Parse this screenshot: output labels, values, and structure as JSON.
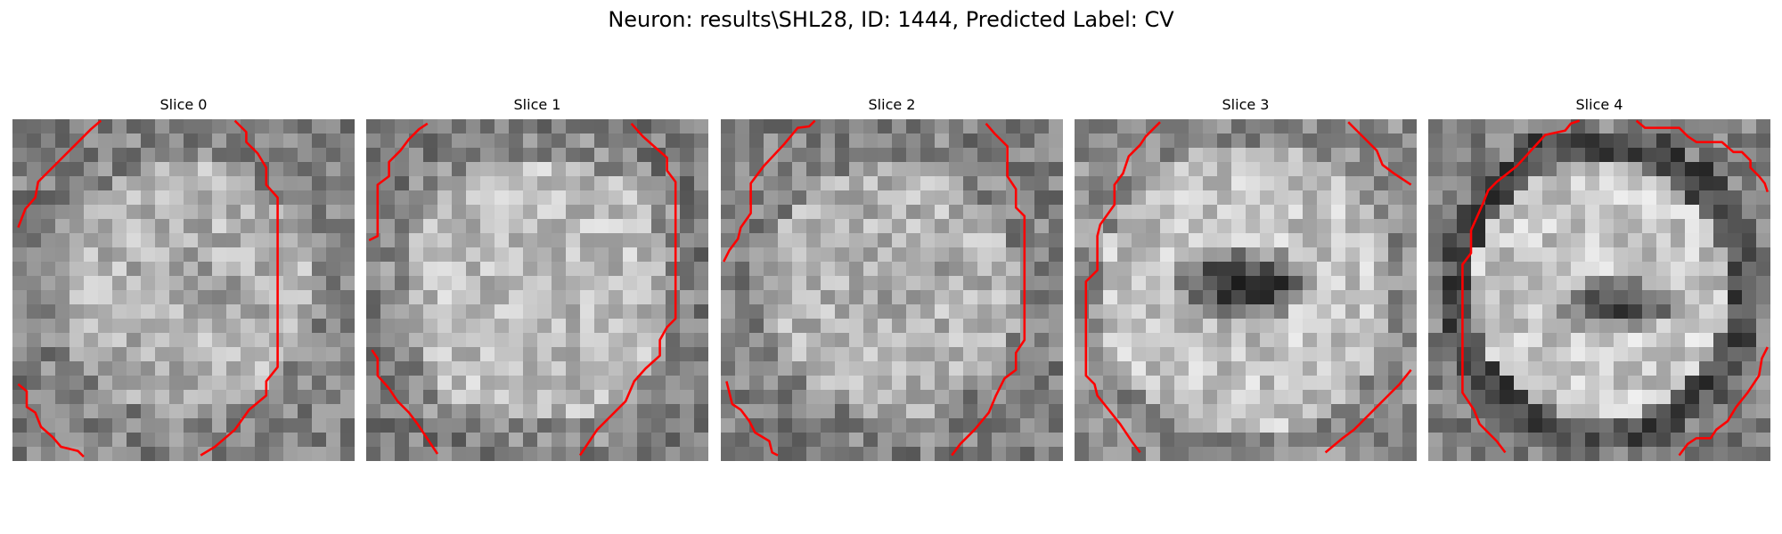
{
  "figure": {
    "title": "Neuron: results\\SHL28, ID: 1444, Predicted Label: CV"
  },
  "grid_size": 24,
  "overlay_color": "#ff0000",
  "colormap": "gray",
  "slices": [
    {
      "title": "Slice 0",
      "seed": 11,
      "pattern": "ring-faint",
      "contours": [
        [
          [
            6.2,
            0.1
          ],
          [
            5.5,
            0.7
          ],
          [
            4.5,
            1.7
          ],
          [
            3.2,
            3.0
          ],
          [
            1.8,
            4.4
          ],
          [
            1.6,
            5.5
          ],
          [
            0.9,
            6.3
          ],
          [
            0.4,
            7.6
          ]
        ],
        [
          [
            15.6,
            0.1
          ],
          [
            16.4,
            0.9
          ],
          [
            16.4,
            1.6
          ],
          [
            17.2,
            2.4
          ],
          [
            17.8,
            3.4
          ],
          [
            17.8,
            4.6
          ],
          [
            18.6,
            5.5
          ],
          [
            18.6,
            17.4
          ],
          [
            17.8,
            18.4
          ],
          [
            17.8,
            19.4
          ],
          [
            16.6,
            20.4
          ],
          [
            15.6,
            21.8
          ],
          [
            14.2,
            23.0
          ],
          [
            13.2,
            23.6
          ]
        ],
        [
          [
            0.4,
            18.6
          ],
          [
            1.0,
            19.1
          ],
          [
            1.0,
            20.2
          ],
          [
            1.6,
            20.6
          ],
          [
            2.0,
            21.6
          ],
          [
            2.8,
            22.3
          ],
          [
            3.4,
            23.0
          ],
          [
            4.6,
            23.3
          ],
          [
            5.0,
            23.7
          ]
        ]
      ]
    },
    {
      "title": "Slice 1",
      "seed": 23,
      "pattern": "disc",
      "contours": [
        [
          [
            4.3,
            0.3
          ],
          [
            3.7,
            0.7
          ],
          [
            3.0,
            1.4
          ],
          [
            2.4,
            2.2
          ],
          [
            1.6,
            3.0
          ],
          [
            1.6,
            4.0
          ],
          [
            0.8,
            4.6
          ],
          [
            0.8,
            8.2
          ],
          [
            0.2,
            8.5
          ]
        ],
        [
          [
            18.6,
            0.3
          ],
          [
            19.4,
            1.2
          ],
          [
            20.3,
            2.0
          ],
          [
            21.1,
            2.7
          ],
          [
            21.1,
            3.6
          ],
          [
            21.7,
            4.4
          ],
          [
            21.7,
            14.0
          ],
          [
            21.1,
            14.6
          ],
          [
            20.6,
            15.5
          ],
          [
            20.6,
            16.6
          ],
          [
            19.6,
            17.5
          ],
          [
            18.8,
            18.4
          ],
          [
            18.2,
            19.8
          ],
          [
            17.0,
            21.0
          ],
          [
            16.2,
            21.8
          ],
          [
            15.4,
            23.0
          ],
          [
            15.0,
            23.6
          ]
        ],
        [
          [
            0.4,
            16.2
          ],
          [
            0.8,
            16.8
          ],
          [
            0.8,
            18.0
          ],
          [
            1.6,
            18.9
          ],
          [
            2.2,
            19.8
          ],
          [
            3.0,
            20.6
          ],
          [
            3.6,
            21.4
          ],
          [
            4.4,
            22.6
          ],
          [
            5.0,
            23.5
          ]
        ]
      ]
    },
    {
      "title": "Slice 2",
      "seed": 37,
      "pattern": "ring-faint",
      "contours": [
        [
          [
            6.6,
            0.1
          ],
          [
            6.2,
            0.5
          ],
          [
            5.4,
            0.6
          ],
          [
            4.4,
            1.8
          ],
          [
            3.0,
            3.3
          ],
          [
            2.1,
            4.5
          ],
          [
            2.1,
            6.6
          ],
          [
            1.4,
            7.6
          ],
          [
            1.2,
            8.4
          ],
          [
            0.6,
            9.2
          ],
          [
            0.2,
            10.0
          ]
        ],
        [
          [
            18.6,
            0.3
          ],
          [
            19.2,
            1.0
          ],
          [
            20.1,
            1.9
          ],
          [
            20.1,
            4.0
          ],
          [
            20.7,
            4.9
          ],
          [
            20.7,
            6.2
          ],
          [
            21.3,
            6.8
          ],
          [
            21.3,
            15.5
          ],
          [
            20.7,
            16.4
          ],
          [
            20.7,
            17.6
          ],
          [
            19.9,
            18.2
          ],
          [
            19.3,
            19.4
          ],
          [
            18.8,
            20.6
          ],
          [
            17.8,
            21.8
          ],
          [
            16.8,
            22.8
          ],
          [
            16.2,
            23.6
          ]
        ],
        [
          [
            0.4,
            18.4
          ],
          [
            0.6,
            19.2
          ],
          [
            0.8,
            20.0
          ],
          [
            1.4,
            20.4
          ],
          [
            2.0,
            21.2
          ],
          [
            2.4,
            22.0
          ],
          [
            3.4,
            22.6
          ],
          [
            3.6,
            23.4
          ],
          [
            4.0,
            23.6
          ]
        ]
      ]
    },
    {
      "title": "Slice 3",
      "seed": 53,
      "pattern": "dark-center",
      "contours": [
        [
          [
            6.0,
            0.2
          ],
          [
            5.0,
            1.2
          ],
          [
            4.6,
            1.8
          ],
          [
            3.8,
            2.6
          ],
          [
            3.4,
            3.8
          ],
          [
            2.8,
            4.6
          ],
          [
            2.8,
            6.0
          ],
          [
            1.8,
            7.4
          ],
          [
            1.6,
            8.2
          ],
          [
            1.6,
            10.6
          ],
          [
            0.8,
            11.4
          ],
          [
            0.8,
            18.0
          ],
          [
            1.4,
            18.6
          ],
          [
            1.6,
            19.4
          ],
          [
            2.4,
            20.4
          ],
          [
            3.2,
            21.4
          ],
          [
            4.0,
            22.6
          ],
          [
            4.6,
            23.4
          ]
        ],
        [
          [
            19.2,
            0.2
          ],
          [
            19.6,
            0.6
          ],
          [
            20.4,
            1.4
          ],
          [
            21.2,
            2.2
          ],
          [
            21.6,
            3.2
          ],
          [
            22.4,
            3.8
          ],
          [
            23.6,
            4.6
          ]
        ],
        [
          [
            17.6,
            23.4
          ],
          [
            18.8,
            22.4
          ],
          [
            19.6,
            21.8
          ],
          [
            20.4,
            21.0
          ],
          [
            21.2,
            20.2
          ],
          [
            22.0,
            19.4
          ],
          [
            22.8,
            18.6
          ],
          [
            23.6,
            17.6
          ]
        ]
      ]
    },
    {
      "title": "Slice 4",
      "seed": 71,
      "pattern": "ring-dark",
      "contours": [
        [
          [
            10.6,
            0.1
          ],
          [
            10.0,
            0.3
          ],
          [
            9.6,
            0.8
          ],
          [
            8.2,
            1.1
          ],
          [
            6.2,
            3.3
          ],
          [
            4.8,
            4.4
          ],
          [
            4.2,
            5.0
          ],
          [
            3.8,
            6.0
          ],
          [
            3.0,
            7.8
          ],
          [
            3.0,
            9.4
          ],
          [
            2.4,
            10.2
          ],
          [
            2.4,
            19.2
          ],
          [
            3.2,
            20.4
          ],
          [
            3.6,
            21.4
          ],
          [
            4.8,
            22.6
          ],
          [
            5.4,
            23.4
          ]
        ],
        [
          [
            14.6,
            0.1
          ],
          [
            15.2,
            0.6
          ],
          [
            17.6,
            0.6
          ],
          [
            18.2,
            1.2
          ],
          [
            18.8,
            1.6
          ],
          [
            20.6,
            1.6
          ],
          [
            21.4,
            2.3
          ],
          [
            22.0,
            2.3
          ],
          [
            22.6,
            2.9
          ],
          [
            22.6,
            3.4
          ],
          [
            23.2,
            4.0
          ],
          [
            23.6,
            4.5
          ],
          [
            23.8,
            5.1
          ]
        ],
        [
          [
            17.6,
            23.6
          ],
          [
            18.2,
            22.8
          ],
          [
            18.8,
            22.4
          ],
          [
            19.8,
            22.4
          ],
          [
            20.2,
            21.8
          ],
          [
            21.0,
            21.2
          ],
          [
            21.6,
            20.2
          ],
          [
            22.4,
            19.2
          ],
          [
            23.2,
            18.0
          ],
          [
            23.4,
            16.8
          ],
          [
            23.8,
            16.0
          ]
        ]
      ]
    }
  ]
}
